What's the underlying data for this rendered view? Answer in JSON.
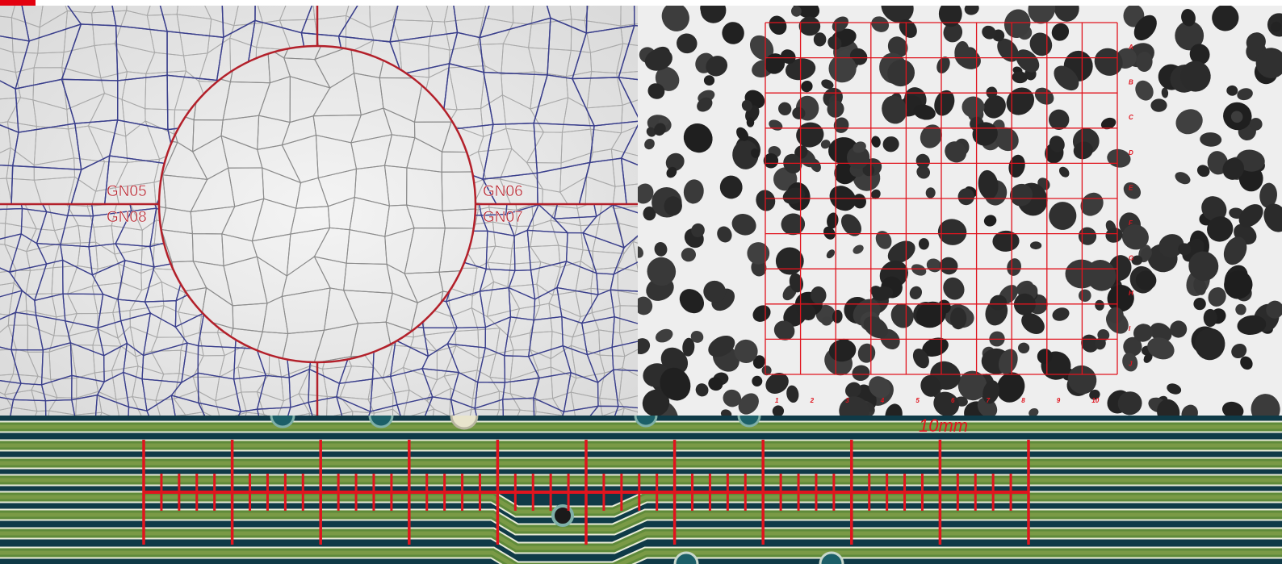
{
  "grain_panel": {
    "labels": [
      "GN05",
      "GN08",
      "GN06",
      "GN07"
    ],
    "overlay_color": "#b3202a",
    "boundary_color": "#3a3f8c"
  },
  "particle_panel": {
    "grid_color": "#e0141e",
    "row_labels": [
      "A",
      "B",
      "C",
      "D",
      "E",
      "F",
      "G",
      "H",
      "I",
      "J"
    ],
    "column_labels": [
      "1",
      "2",
      "3",
      "4",
      "5",
      "6",
      "7",
      "8",
      "9",
      "10"
    ]
  },
  "pcb_panel": {
    "scale_label": "10mm",
    "scale_color": "#e0141e"
  },
  "brand_color": "#e3000f"
}
